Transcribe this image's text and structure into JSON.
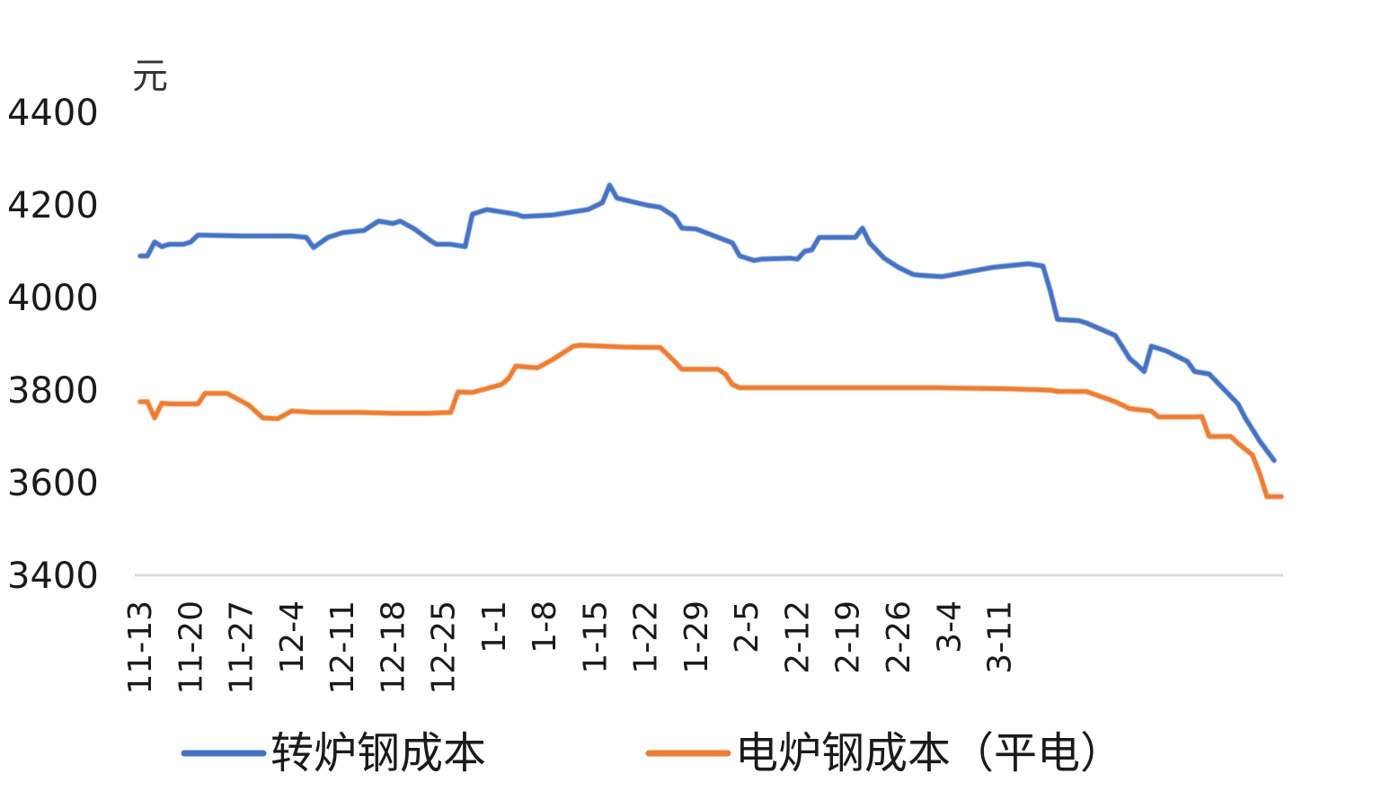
{
  "chart_data": {
    "type": "line",
    "ylabel": "元",
    "ylim": [
      3400,
      4400
    ],
    "yticks": [
      "4400",
      "4200",
      "4000",
      "3800",
      "3600",
      "3400"
    ],
    "categories": [
      "11-13",
      "11-20",
      "11-27",
      "12-4",
      "12-11",
      "12-18",
      "12-25",
      "1-1",
      "1-8",
      "1-15",
      "1-22",
      "1-29",
      "2-5",
      "2-12",
      "2-19",
      "2-26",
      "3-4",
      "3-11"
    ],
    "grid": false,
    "legend_position": "bottom",
    "series": [
      {
        "name": "转炉钢成本",
        "color": "#4472C4",
        "points": [
          [
            0,
            4090
          ],
          [
            1,
            4090
          ],
          [
            2,
            4120
          ],
          [
            3,
            4110
          ],
          [
            4,
            4115
          ],
          [
            6,
            4115
          ],
          [
            7,
            4120
          ],
          [
            8,
            4135
          ],
          [
            14,
            4133
          ],
          [
            21,
            4133
          ],
          [
            23,
            4130
          ],
          [
            24,
            4108
          ],
          [
            26,
            4130
          ],
          [
            28,
            4140
          ],
          [
            31,
            4145
          ],
          [
            33,
            4165
          ],
          [
            35,
            4160
          ],
          [
            36,
            4165
          ],
          [
            38,
            4148
          ],
          [
            40,
            4125
          ],
          [
            41,
            4115
          ],
          [
            43,
            4115
          ],
          [
            45,
            4110
          ],
          [
            46,
            4180
          ],
          [
            48,
            4190
          ],
          [
            52,
            4180
          ],
          [
            53,
            4175
          ],
          [
            57,
            4178
          ],
          [
            62,
            4190
          ],
          [
            64,
            4205
          ],
          [
            65,
            4243
          ],
          [
            66,
            4215
          ],
          [
            70,
            4200
          ],
          [
            72,
            4195
          ],
          [
            74,
            4175
          ],
          [
            75,
            4150
          ],
          [
            77,
            4148
          ],
          [
            80,
            4130
          ],
          [
            82,
            4118
          ],
          [
            83,
            4090
          ],
          [
            84,
            4085
          ],
          [
            85,
            4080
          ],
          [
            86,
            4083
          ],
          [
            90,
            4085
          ],
          [
            91,
            4083
          ],
          [
            92,
            4100
          ],
          [
            93,
            4103
          ],
          [
            94,
            4130
          ],
          [
            96,
            4130
          ],
          [
            99,
            4130
          ],
          [
            100,
            4150
          ],
          [
            101,
            4118
          ],
          [
            103,
            4085
          ],
          [
            105,
            4065
          ],
          [
            107,
            4050
          ],
          [
            108,
            4048
          ],
          [
            111,
            4045
          ],
          [
            118,
            4065
          ],
          [
            123,
            4073
          ],
          [
            125,
            4068
          ],
          [
            126,
            4015
          ],
          [
            127,
            3953
          ],
          [
            130,
            3950
          ],
          [
            131,
            3945
          ],
          [
            135,
            3918
          ],
          [
            136,
            3893
          ],
          [
            137,
            3868
          ],
          [
            138,
            3855
          ],
          [
            139,
            3840
          ],
          [
            140,
            3895
          ],
          [
            142,
            3885
          ],
          [
            145,
            3862
          ],
          [
            146,
            3840
          ],
          [
            148,
            3835
          ],
          [
            152,
            3770
          ],
          [
            153,
            3740
          ],
          [
            155,
            3690
          ],
          [
            157,
            3648
          ]
        ]
      },
      {
        "name": "电炉钢成本（平电）",
        "color": "#ED7D31",
        "points": [
          [
            0,
            3775
          ],
          [
            1,
            3775
          ],
          [
            2,
            3740
          ],
          [
            3,
            3772
          ],
          [
            4,
            3770
          ],
          [
            8,
            3770
          ],
          [
            9,
            3793
          ],
          [
            12,
            3793
          ],
          [
            15,
            3768
          ],
          [
            17,
            3740
          ],
          [
            19,
            3738
          ],
          [
            21,
            3755
          ],
          [
            24,
            3752
          ],
          [
            30,
            3752
          ],
          [
            35,
            3750
          ],
          [
            40,
            3750
          ],
          [
            43,
            3752
          ],
          [
            44,
            3796
          ],
          [
            46,
            3795
          ],
          [
            50,
            3812
          ],
          [
            51,
            3825
          ],
          [
            52,
            3852
          ],
          [
            55,
            3848
          ],
          [
            57,
            3865
          ],
          [
            60,
            3895
          ],
          [
            61,
            3897
          ],
          [
            67,
            3893
          ],
          [
            72,
            3892
          ],
          [
            74,
            3862
          ],
          [
            75,
            3845
          ],
          [
            80,
            3845
          ],
          [
            81,
            3835
          ],
          [
            82,
            3812
          ],
          [
            83,
            3805
          ],
          [
            90,
            3805
          ],
          [
            100,
            3805
          ],
          [
            110,
            3805
          ],
          [
            120,
            3803
          ],
          [
            126,
            3800
          ],
          [
            127,
            3797
          ],
          [
            131,
            3797
          ],
          [
            135,
            3775
          ],
          [
            137,
            3760
          ],
          [
            140,
            3755
          ],
          [
            141,
            3742
          ],
          [
            146,
            3742
          ],
          [
            147,
            3743
          ],
          [
            148,
            3700
          ],
          [
            151,
            3700
          ],
          [
            152,
            3685
          ],
          [
            154,
            3660
          ],
          [
            155,
            3620
          ],
          [
            156,
            3570
          ],
          [
            158,
            3570
          ]
        ]
      }
    ]
  }
}
